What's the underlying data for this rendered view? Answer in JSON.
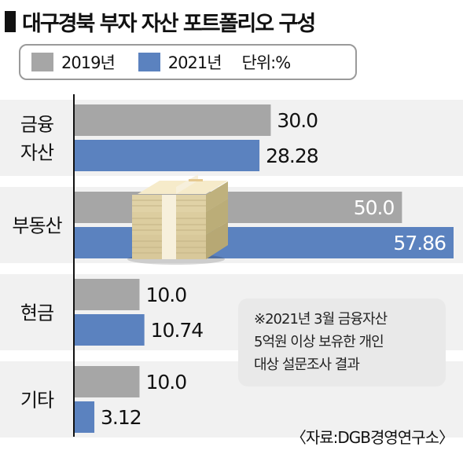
{
  "title": "대구경북 부자 자산 포트폴리오 구성",
  "legend": {
    "items": [
      {
        "label": "2019년",
        "color": "#a6a6a6"
      },
      {
        "label": "2021년",
        "color": "#5b82bf"
      }
    ],
    "unit": "단위:%"
  },
  "chart_data": {
    "type": "bar",
    "orientation": "horizontal",
    "categories": [
      "금융 자산",
      "부동산",
      "현금",
      "기타"
    ],
    "category_lines": [
      [
        "금융",
        "자산"
      ],
      [
        "부동산"
      ],
      [
        "현금"
      ],
      [
        "기타"
      ]
    ],
    "series": [
      {
        "name": "2019년",
        "values": [
          30.0,
          50.0,
          10.0,
          10.0
        ],
        "labels": [
          "30.0",
          "50.0",
          "10.0",
          "10.0"
        ],
        "color": "#a6a6a6"
      },
      {
        "name": "2021년",
        "values": [
          28.28,
          57.86,
          10.74,
          3.12
        ],
        "labels": [
          "28.28",
          "57.86",
          "10.74",
          "3.12"
        ],
        "color": "#5b82bf"
      }
    ],
    "xlim": [
      0,
      57.86
    ],
    "unit": "%",
    "grid": false,
    "legend_position": "top"
  },
  "note": {
    "lines": [
      "※2021년 3월 금융자산",
      "5억원 이상 보유한 개인",
      "대상 설문조사 결과"
    ]
  },
  "source": "〈자료:DGB경영연구소〉",
  "icon": "money-stack-icon"
}
